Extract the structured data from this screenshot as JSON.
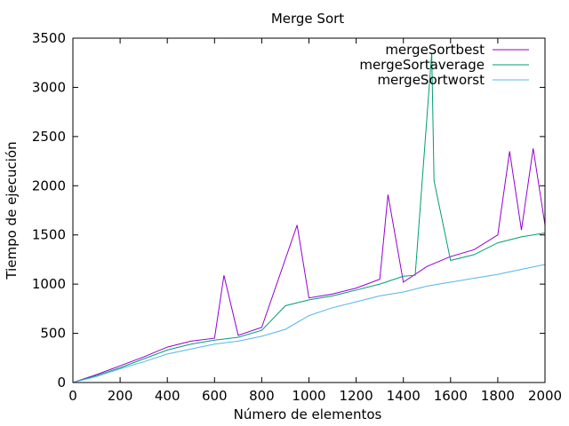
{
  "chart_data": {
    "type": "line",
    "title": "Merge Sort",
    "xlabel": "Número de elementos",
    "ylabel": "Tiempo de ejecución",
    "xlim": [
      0,
      2000
    ],
    "ylim": [
      0,
      3500
    ],
    "xticks": [
      0,
      200,
      400,
      600,
      800,
      1000,
      1200,
      1400,
      1600,
      1800,
      2000
    ],
    "yticks": [
      0,
      500,
      1000,
      1500,
      2000,
      2500,
      3000,
      3500
    ],
    "grid": false,
    "legend_position": "top-right",
    "series": [
      {
        "name": "mergeSortbest",
        "color": "#9400d3",
        "points": [
          [
            0,
            0
          ],
          [
            100,
            80
          ],
          [
            200,
            170
          ],
          [
            300,
            260
          ],
          [
            400,
            360
          ],
          [
            500,
            420
          ],
          [
            600,
            450
          ],
          [
            640,
            1090
          ],
          [
            700,
            480
          ],
          [
            800,
            560
          ],
          [
            950,
            1600
          ],
          [
            1000,
            860
          ],
          [
            1100,
            900
          ],
          [
            1200,
            960
          ],
          [
            1300,
            1050
          ],
          [
            1335,
            1910
          ],
          [
            1400,
            1020
          ],
          [
            1500,
            1180
          ],
          [
            1600,
            1280
          ],
          [
            1700,
            1350
          ],
          [
            1800,
            1500
          ],
          [
            1850,
            2350
          ],
          [
            1900,
            1550
          ],
          [
            1950,
            2380
          ],
          [
            2000,
            1600
          ]
        ]
      },
      {
        "name": "mergeSortaverage",
        "color": "#009e73",
        "points": [
          [
            0,
            0
          ],
          [
            100,
            70
          ],
          [
            200,
            150
          ],
          [
            300,
            240
          ],
          [
            400,
            330
          ],
          [
            500,
            390
          ],
          [
            600,
            430
          ],
          [
            700,
            460
          ],
          [
            800,
            530
          ],
          [
            900,
            780
          ],
          [
            1000,
            840
          ],
          [
            1100,
            880
          ],
          [
            1200,
            940
          ],
          [
            1300,
            1000
          ],
          [
            1400,
            1080
          ],
          [
            1450,
            1090
          ],
          [
            1520,
            3350
          ],
          [
            1530,
            2050
          ],
          [
            1600,
            1240
          ],
          [
            1700,
            1300
          ],
          [
            1800,
            1420
          ],
          [
            1900,
            1480
          ],
          [
            2000,
            1520
          ]
        ]
      },
      {
        "name": "mergeSortworst",
        "color": "#56b4e9",
        "points": [
          [
            0,
            0
          ],
          [
            100,
            60
          ],
          [
            200,
            140
          ],
          [
            300,
            210
          ],
          [
            400,
            290
          ],
          [
            500,
            340
          ],
          [
            600,
            390
          ],
          [
            700,
            420
          ],
          [
            800,
            470
          ],
          [
            900,
            540
          ],
          [
            1000,
            680
          ],
          [
            1100,
            760
          ],
          [
            1200,
            820
          ],
          [
            1300,
            880
          ],
          [
            1400,
            920
          ],
          [
            1500,
            980
          ],
          [
            1600,
            1020
          ],
          [
            1700,
            1060
          ],
          [
            1800,
            1100
          ],
          [
            1900,
            1150
          ],
          [
            2000,
            1200
          ]
        ]
      }
    ]
  }
}
